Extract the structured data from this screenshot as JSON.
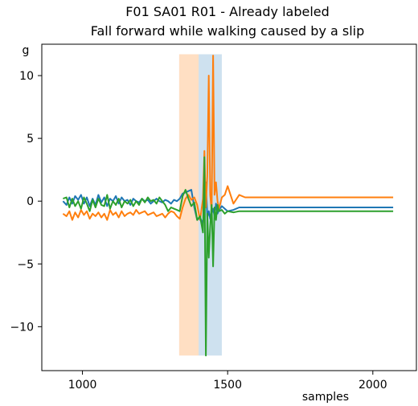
{
  "chart_data": {
    "type": "line",
    "title": [
      "F01 SA01 R01 - Already labeled",
      "Fall forward while walking caused by a slip"
    ],
    "xlabel": "samples",
    "ylabel": "g",
    "xlim": [
      860,
      2150
    ],
    "ylim": [
      -13.5,
      12.5
    ],
    "xticks": [
      1000,
      1500,
      2000
    ],
    "yticks": [
      10,
      5,
      0,
      -5,
      -10
    ],
    "ytick_labels": [
      "10",
      "5",
      "0",
      "−5",
      "−10"
    ],
    "grid": false,
    "legend": "none",
    "spans": [
      {
        "x0": 1333,
        "x1": 1400,
        "y0": -12.3,
        "y1": 11.7,
        "color": "#ff7f0e",
        "opacity": 0.25
      },
      {
        "x0": 1400,
        "x1": 1480,
        "y0": -12.3,
        "y1": 11.7,
        "color": "#1f77b4",
        "opacity": 0.22
      }
    ],
    "series": [
      {
        "color": "#1f77b4",
        "x": [
          933,
          945,
          955,
          965,
          975,
          985,
          995,
          1005,
          1015,
          1025,
          1035,
          1045,
          1055,
          1065,
          1075,
          1085,
          1095,
          1105,
          1115,
          1125,
          1135,
          1145,
          1155,
          1165,
          1175,
          1185,
          1195,
          1205,
          1215,
          1225,
          1235,
          1245,
          1255,
          1265,
          1275,
          1285,
          1295,
          1305,
          1315,
          1325,
          1335,
          1345,
          1355,
          1365,
          1375,
          1385,
          1395,
          1405,
          1415,
          1420,
          1425,
          1430,
          1435,
          1440,
          1445,
          1450,
          1455,
          1460,
          1465,
          1470,
          1480,
          1490,
          1500,
          1520,
          1540,
          1560,
          1600,
          1700,
          1800,
          1900,
          2000,
          2070
        ],
        "values": [
          0.0,
          -0.3,
          0.3,
          -0.2,
          0.4,
          0.1,
          0.5,
          -0.2,
          0.3,
          -0.4,
          0.2,
          -0.3,
          0.5,
          -0.1,
          0.3,
          -0.4,
          0.2,
          0.0,
          0.4,
          -0.2,
          0.3,
          0.0,
          0.1,
          -0.3,
          0.2,
          0.0,
          -0.1,
          0.2,
          0.0,
          0.1,
          -0.2,
          0.0,
          0.2,
          0.0,
          -0.1,
          0.1,
          0.0,
          -0.2,
          0.1,
          0.0,
          0.2,
          0.6,
          0.7,
          0.8,
          0.9,
          -0.5,
          -1.5,
          -1.3,
          -1.8,
          -0.5,
          1.5,
          -1.3,
          -0.8,
          -1.4,
          -1.0,
          -0.6,
          -1.2,
          -0.2,
          -1.0,
          -0.7,
          -0.4,
          -0.6,
          -0.8,
          -0.7,
          -0.5,
          -0.5,
          -0.5,
          -0.5,
          -0.5,
          -0.5,
          -0.5,
          -0.5
        ]
      },
      {
        "color": "#ff7f0e",
        "x": [
          933,
          945,
          955,
          965,
          975,
          985,
          995,
          1005,
          1015,
          1025,
          1035,
          1045,
          1055,
          1065,
          1075,
          1085,
          1095,
          1105,
          1115,
          1125,
          1135,
          1145,
          1155,
          1165,
          1175,
          1185,
          1195,
          1205,
          1215,
          1225,
          1235,
          1245,
          1255,
          1265,
          1275,
          1285,
          1295,
          1305,
          1315,
          1325,
          1335,
          1345,
          1355,
          1365,
          1375,
          1385,
          1395,
          1405,
          1415,
          1420,
          1425,
          1430,
          1435,
          1440,
          1445,
          1450,
          1455,
          1460,
          1465,
          1470,
          1480,
          1490,
          1500,
          1510,
          1520,
          1540,
          1560,
          1600,
          1700,
          1800,
          1900,
          2000,
          2070
        ],
        "values": [
          -1.0,
          -1.2,
          -0.8,
          -1.5,
          -0.9,
          -1.3,
          -0.7,
          -1.1,
          -0.8,
          -1.4,
          -1.0,
          -1.2,
          -0.9,
          -1.3,
          -1.0,
          -1.5,
          -0.7,
          -1.1,
          -0.9,
          -1.3,
          -0.8,
          -1.2,
          -1.0,
          -0.9,
          -1.1,
          -0.7,
          -1.0,
          -0.9,
          -0.8,
          -1.1,
          -1.0,
          -0.9,
          -1.2,
          -1.1,
          -1.0,
          -1.3,
          -1.0,
          -0.8,
          -0.9,
          -1.2,
          -1.4,
          -0.5,
          0.2,
          0.5,
          0.1,
          0.3,
          -0.3,
          -1.5,
          0.2,
          4.0,
          -0.5,
          2.0,
          10.0,
          0.5,
          -0.8,
          11.6,
          0.5,
          1.5,
          0.0,
          -0.6,
          0.3,
          0.5,
          1.2,
          0.5,
          -0.2,
          0.5,
          0.3,
          0.3,
          0.3,
          0.3,
          0.3,
          0.3,
          0.3
        ]
      },
      {
        "color": "#2ca02c",
        "x": [
          933,
          945,
          955,
          965,
          975,
          985,
          995,
          1005,
          1015,
          1025,
          1035,
          1045,
          1055,
          1065,
          1075,
          1085,
          1095,
          1105,
          1115,
          1125,
          1135,
          1145,
          1155,
          1165,
          1175,
          1185,
          1195,
          1205,
          1215,
          1225,
          1235,
          1245,
          1255,
          1265,
          1275,
          1285,
          1295,
          1305,
          1315,
          1325,
          1335,
          1345,
          1355,
          1365,
          1375,
          1385,
          1395,
          1405,
          1415,
          1420,
          1425,
          1430,
          1435,
          1440,
          1445,
          1450,
          1455,
          1460,
          1465,
          1470,
          1480,
          1490,
          1500,
          1520,
          1540,
          1560,
          1600,
          1700,
          1800,
          1900,
          2000,
          2070
        ],
        "values": [
          0.2,
          0.3,
          -0.5,
          0.2,
          -0.4,
          0.0,
          -0.6,
          0.3,
          -0.2,
          -0.8,
          0.1,
          -0.5,
          0.2,
          -0.3,
          -0.4,
          0.5,
          -0.6,
          0.0,
          -0.3,
          0.2,
          -0.5,
          0.0,
          -0.2,
          0.1,
          -0.4,
          0.0,
          -0.3,
          0.2,
          -0.1,
          0.3,
          0.0,
          0.1,
          -0.2,
          0.3,
          0.0,
          -0.3,
          -0.8,
          -0.5,
          -0.6,
          -0.7,
          -0.8,
          0.4,
          0.9,
          0.2,
          -0.4,
          -0.1,
          -1.5,
          -1.2,
          -2.5,
          3.5,
          -12.3,
          -1.0,
          -4.5,
          -2.0,
          -0.3,
          -5.2,
          -0.5,
          -1.5,
          -0.3,
          -0.8,
          -0.7,
          -1.0,
          -0.8,
          -0.9,
          -0.8,
          -0.8,
          -0.8,
          -0.8,
          -0.8,
          -0.8,
          -0.8,
          -0.8
        ]
      }
    ]
  }
}
